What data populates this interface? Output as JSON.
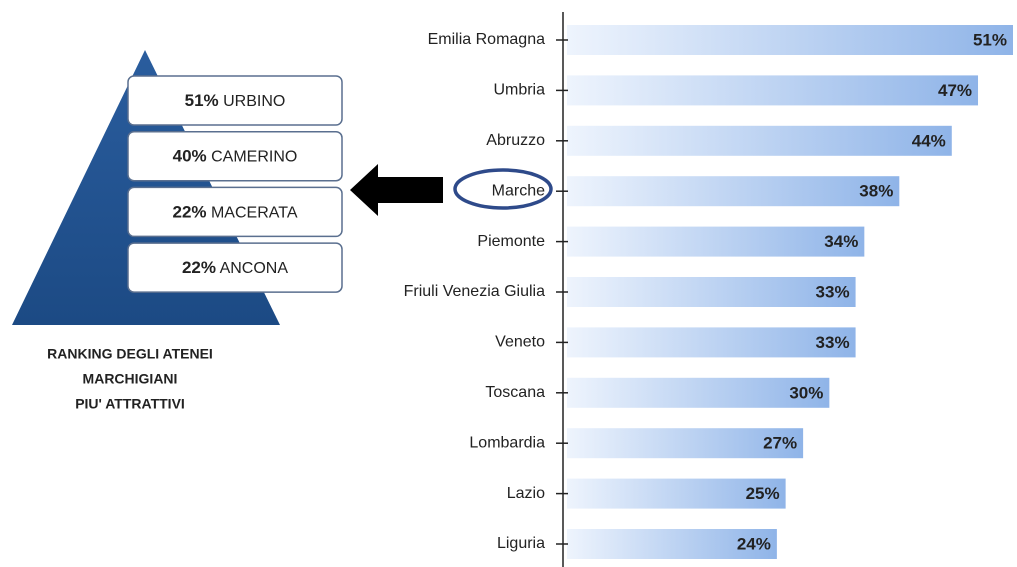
{
  "chart_data": {
    "type": "bar",
    "orientation": "horizontal",
    "categories": [
      "Emilia Romagna",
      "Umbria",
      "Abruzzo",
      "Marche",
      "Piemonte",
      "Friuli Venezia Giulia",
      "Veneto",
      "Toscana",
      "Lombardia",
      "Lazio",
      "Liguria"
    ],
    "values": [
      51,
      47,
      44,
      38,
      34,
      33,
      33,
      30,
      27,
      25,
      24
    ],
    "value_labels": [
      "51%",
      "47%",
      "44%",
      "38%",
      "34%",
      "33%",
      "33%",
      "30%",
      "27%",
      "25%",
      "24%"
    ],
    "color": "#8fb4e8"
  },
  "pyramid": {
    "items": [
      {
        "percent": "51%",
        "name": "URBINO"
      },
      {
        "percent": "40%",
        "name": "CAMERINO"
      },
      {
        "percent": "22%",
        "name": "MACERATA"
      },
      {
        "percent": "22%",
        "name": "ANCONA"
      }
    ],
    "caption": [
      "RANKING DEGLI  ATENEI",
      "MARCHIGIANI",
      "PIU' ATTRATTIVI"
    ]
  }
}
